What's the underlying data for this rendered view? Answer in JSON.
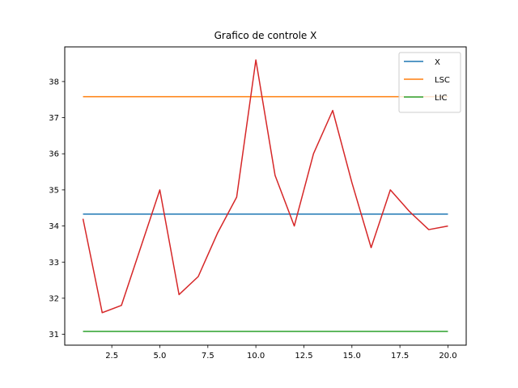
{
  "chart_data": {
    "type": "line",
    "title": "Grafico de controle X",
    "xlabel": "",
    "ylabel": "",
    "xlim": [
      0.05,
      20.95
    ],
    "ylim": [
      30.7,
      38.96
    ],
    "x_ticks": [
      2.5,
      5.0,
      7.5,
      10.0,
      12.5,
      15.0,
      17.5,
      20.0
    ],
    "x_tick_labels": [
      "2.5",
      "5.0",
      "7.5",
      "10.0",
      "12.5",
      "15.0",
      "17.5",
      "20.0"
    ],
    "y_ticks": [
      31,
      32,
      33,
      34,
      35,
      36,
      37,
      38
    ],
    "y_tick_labels": [
      "31",
      "32",
      "33",
      "34",
      "35",
      "36",
      "37",
      "38"
    ],
    "grid": false,
    "legend_position": "top-right",
    "x": [
      1,
      2,
      3,
      4,
      5,
      6,
      7,
      8,
      9,
      10,
      11,
      12,
      13,
      14,
      15,
      16,
      17,
      18,
      19,
      20
    ],
    "series": [
      {
        "name": "X",
        "color": "#1f77b4",
        "in_legend": true,
        "values": [
          34.33,
          34.33,
          34.33,
          34.33,
          34.33,
          34.33,
          34.33,
          34.33,
          34.33,
          34.33,
          34.33,
          34.33,
          34.33,
          34.33,
          34.33,
          34.33,
          34.33,
          34.33,
          34.33,
          34.33
        ]
      },
      {
        "name": "LSC",
        "color": "#ff7f0e",
        "in_legend": true,
        "values": [
          37.58,
          37.58,
          37.58,
          37.58,
          37.58,
          37.58,
          37.58,
          37.58,
          37.58,
          37.58,
          37.58,
          37.58,
          37.58,
          37.58,
          37.58,
          37.58,
          37.58,
          37.58,
          37.58,
          37.58
        ]
      },
      {
        "name": "LIC",
        "color": "#2ca02c",
        "in_legend": true,
        "values": [
          31.08,
          31.08,
          31.08,
          31.08,
          31.08,
          31.08,
          31.08,
          31.08,
          31.08,
          31.08,
          31.08,
          31.08,
          31.08,
          31.08,
          31.08,
          31.08,
          31.08,
          31.08,
          31.08,
          31.08
        ]
      },
      {
        "color": "#d62728",
        "in_legend": false,
        "values": [
          34.2,
          31.6,
          31.8,
          33.4,
          35.0,
          32.1,
          32.6,
          33.8,
          34.8,
          38.6,
          35.4,
          34.0,
          36.0,
          37.2,
          35.2,
          33.4,
          35.0,
          34.4,
          33.9,
          34.0
        ]
      }
    ]
  }
}
